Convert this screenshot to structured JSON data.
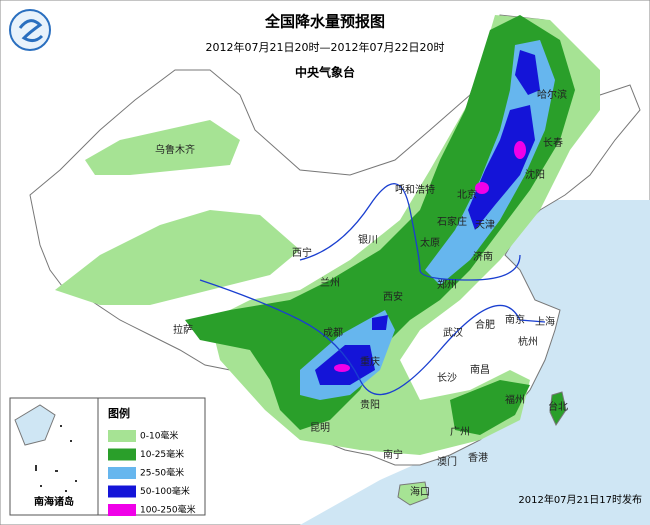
{
  "header": {
    "title": "全国降水量预报图",
    "period": "2012年07月21日20时—2012年07月22日20时",
    "issuer": "中央气象台"
  },
  "legend": {
    "title": "图例",
    "items": [
      {
        "label": "0-10毫米",
        "color": "#a6e394"
      },
      {
        "label": "10-25毫米",
        "color": "#2a9f2a"
      },
      {
        "label": "25-50毫米",
        "color": "#66b6ee"
      },
      {
        "label": "50-100毫米",
        "color": "#1414d8"
      },
      {
        "label": "100-250毫米",
        "color": "#f000e8"
      }
    ]
  },
  "cities": [
    "乌鲁木齐",
    "哈尔滨",
    "长春",
    "沈阳",
    "呼和浩特",
    "北京",
    "石家庄",
    "天津",
    "太原",
    "银川",
    "西宁",
    "兰州",
    "济南",
    "郑州",
    "西安",
    "拉萨",
    "成都",
    "武汉",
    "合肥",
    "南京",
    "上海",
    "杭州",
    "重庆",
    "南昌",
    "长沙",
    "贵阳",
    "福州",
    "台北",
    "昆明",
    "广州",
    "南宁",
    "澳门",
    "香港",
    "海口"
  ],
  "inset": {
    "label": "南海诸岛"
  },
  "footer": {
    "release": "2012年07月21日17时发布"
  }
}
